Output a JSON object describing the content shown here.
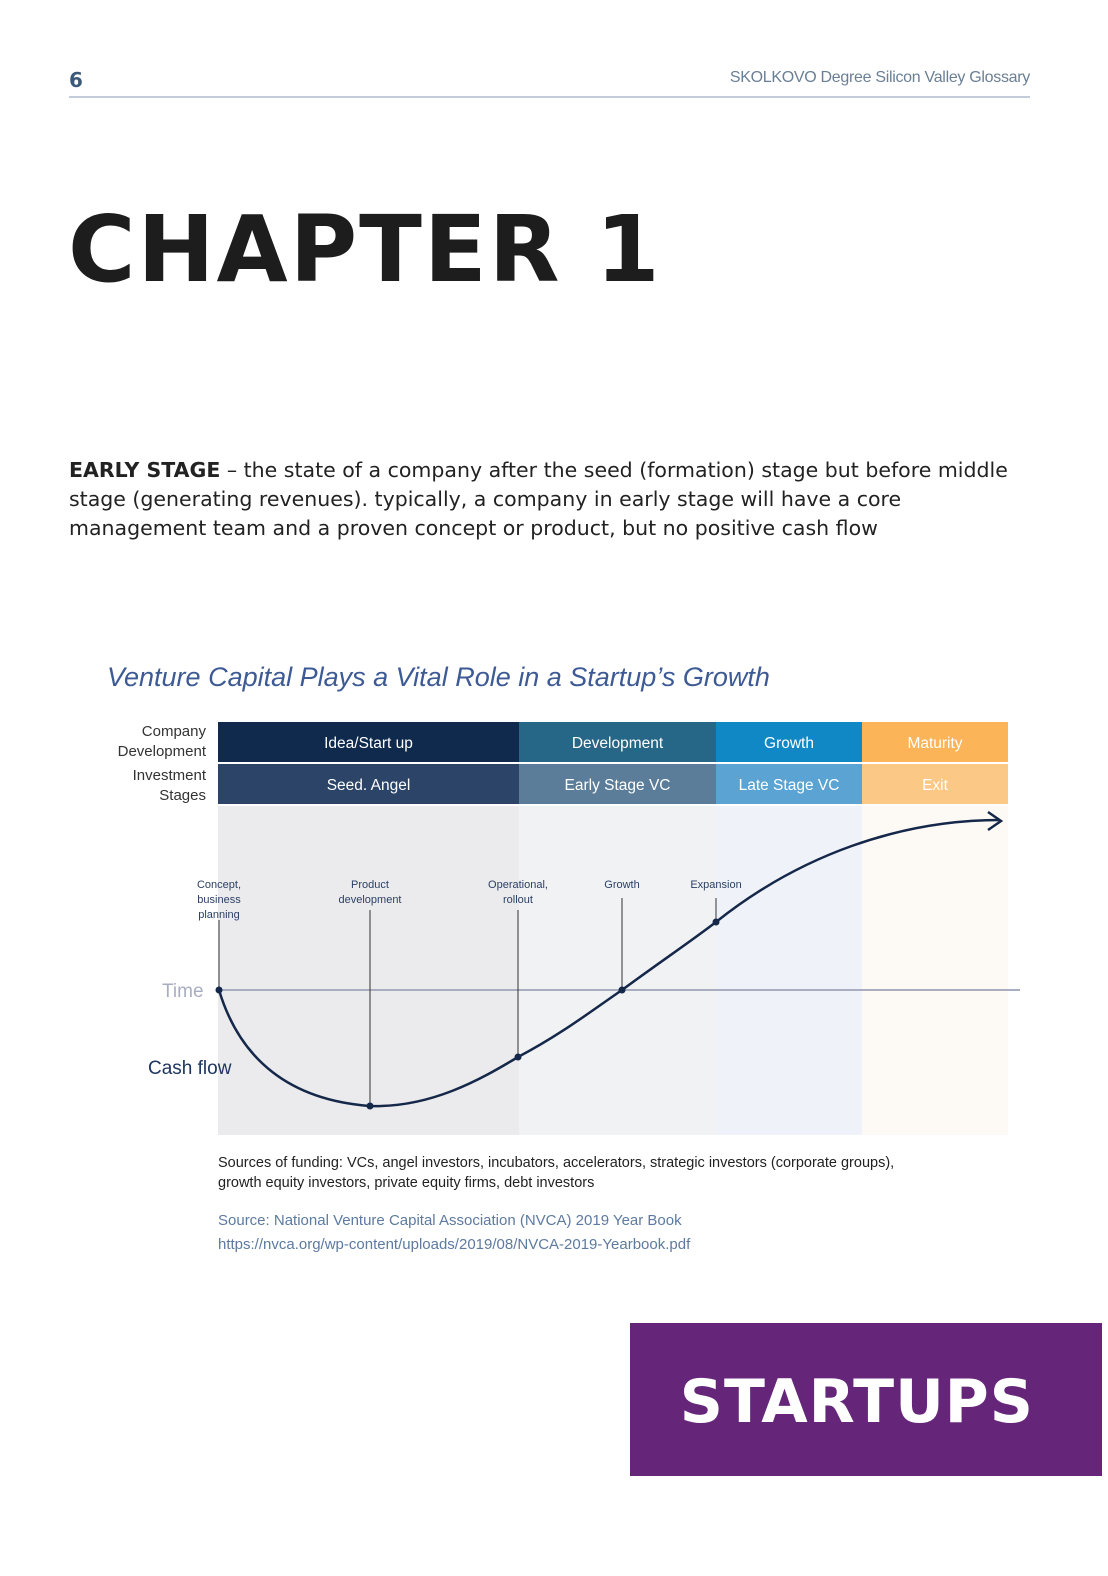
{
  "header": {
    "page_number": "6",
    "running_title": "SKOLKOVO Degree Silicon Valley Glossary"
  },
  "chapter_title": "CHAPTER 1",
  "definition": {
    "term": "EARLY STAGE",
    "text": " – the state of a company after the seed (formation) stage but before middle stage (generating revenues). typically, a company in early stage will have a core management team and a proven concept or product, but no positive cash flow"
  },
  "figure": {
    "title": "Venture Capital Plays a Vital Role in a Startup’s Growth",
    "row_labels": {
      "company_development": [
        "Company",
        "Development"
      ],
      "investment_stages": [
        "Investment",
        "Stages"
      ]
    },
    "phases": [
      {
        "development": "Idea/Start up",
        "investment": "Seed. Angel",
        "color_top": "#0f2a4d",
        "color_bottom": "#2b4468",
        "bg": "#ebebee"
      },
      {
        "development": "Development",
        "investment": "Early Stage VC",
        "color_top": "#266686",
        "color_bottom": "#5b7d9a",
        "bg": "#f1f2f4"
      },
      {
        "development": "Growth",
        "investment": "Late Stage VC",
        "color_top": "#0f88c5",
        "color_bottom": "#5aa3d2",
        "bg": "#eff3f9"
      },
      {
        "development": "Maturity",
        "investment": "Exit",
        "color_top": "#fbb457",
        "color_bottom": "#fcc886",
        "bg": "#fdfaf5"
      }
    ],
    "milestones": [
      [
        "Concept,",
        "business",
        "planning"
      ],
      [
        "Product",
        "development"
      ],
      [
        "Operational,",
        "rollout"
      ],
      [
        "Growth"
      ],
      [
        "Expansion"
      ]
    ],
    "time_label": "Time",
    "cashflow_label": "Cash flow",
    "funding_sources": [
      "Sources of funding: VCs, angel investors, incubators, accelerators, strategic investors (corporate groups),",
      "growth equity investors, private equity firms, debt investors"
    ],
    "source": [
      "Source: National Venture Capital Association (NVCA) 2019 Year Book",
      "https://nvca.org/wp-content/uploads/2019/08/NVCA-2019-Yearbook.pdf"
    ]
  },
  "section_badge": "STARTUPS",
  "colors": {
    "badge": "#65267a",
    "figure_title": "#3d5a95",
    "curve": "#15284a"
  }
}
